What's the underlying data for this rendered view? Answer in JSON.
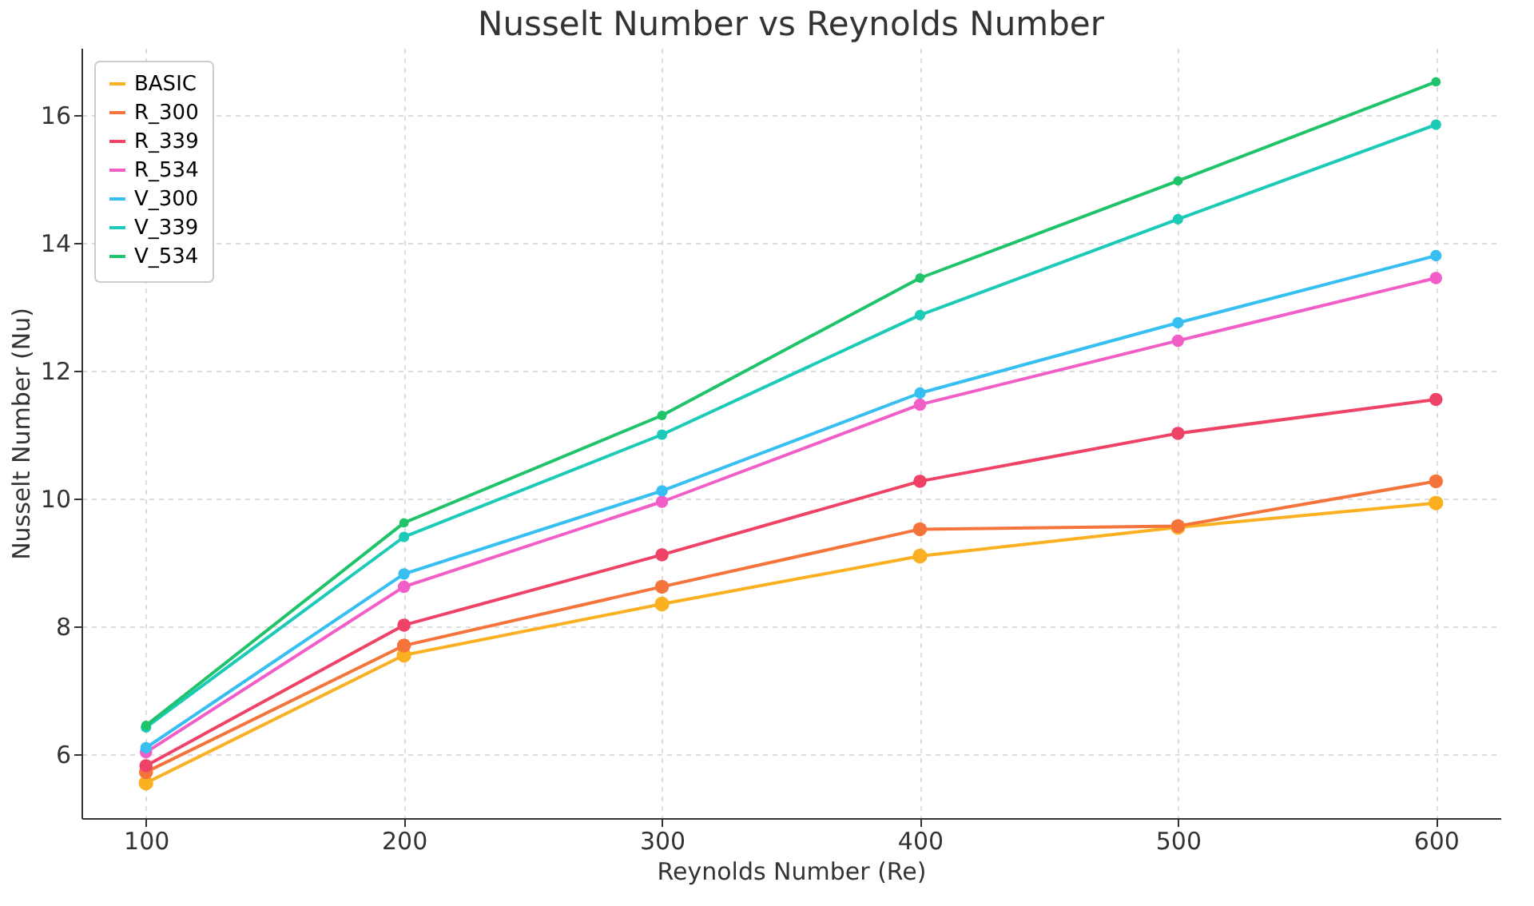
{
  "chart_data": {
    "type": "line",
    "title": "Nusselt Number vs Reynolds Number",
    "xlabel": "Reynolds Number (Re)",
    "ylabel": "Nusselt Number (Nu)",
    "x": [
      100,
      200,
      300,
      400,
      500,
      600
    ],
    "series": [
      {
        "name": "BASIC",
        "color": "#fbb022",
        "values": [
          5.55,
          7.55,
          8.35,
          9.1,
          9.55,
          9.93
        ]
      },
      {
        "name": "R_300",
        "color": "#f4743b",
        "values": [
          5.72,
          7.7,
          8.62,
          9.52,
          9.57,
          10.27
        ]
      },
      {
        "name": "R_339",
        "color": "#ee4266",
        "values": [
          5.82,
          8.02,
          9.12,
          10.27,
          11.02,
          11.55
        ]
      },
      {
        "name": "R_534",
        "color": "#f25ec8",
        "values": [
          6.03,
          8.62,
          9.95,
          11.47,
          12.47,
          13.45
        ]
      },
      {
        "name": "V_300",
        "color": "#36bff0",
        "values": [
          6.1,
          8.82,
          10.12,
          11.65,
          12.75,
          13.8
        ]
      },
      {
        "name": "V_339",
        "color": "#1ccab8",
        "values": [
          6.42,
          9.4,
          11.0,
          12.87,
          14.37,
          15.85
        ]
      },
      {
        "name": "V_534",
        "color": "#1fc36a",
        "values": [
          6.45,
          9.62,
          11.3,
          13.45,
          14.97,
          16.52
        ]
      }
    ],
    "xlim": [
      75,
      625
    ],
    "xticks": [
      100,
      200,
      300,
      400,
      500,
      600
    ],
    "ylim": [
      5,
      17.05
    ],
    "yticks": [
      6,
      8,
      10,
      12,
      14,
      16
    ],
    "grid": true,
    "legend": "top left",
    "marker": "circle",
    "line_style": "solid"
  }
}
